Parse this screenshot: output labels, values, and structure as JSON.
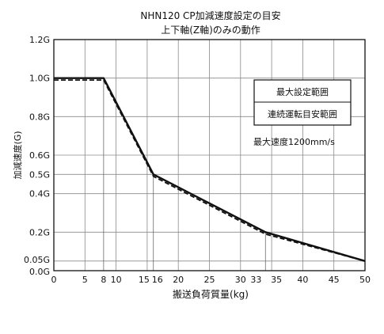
{
  "chart_data": {
    "type": "line",
    "title": "NHN120 CP加減速度設定の目安",
    "subtitle": "上下軸(Z軸)のみの動作",
    "xlabel": "搬送負荷質量(kg)",
    "ylabel": "加減速度(G)",
    "xlim": [
      0,
      50
    ],
    "ylim": [
      0,
      1.2
    ],
    "x_ticks": [
      0,
      5,
      8,
      10,
      15,
      16,
      20,
      25,
      30,
      33,
      35,
      40,
      45,
      50
    ],
    "x_tick_labels": [
      "0",
      "5",
      "8",
      "10",
      "15",
      "16",
      "20",
      "25",
      "30",
      "33",
      "35",
      "40",
      "45",
      "50"
    ],
    "y_ticks": [
      0,
      0.05,
      0.2,
      0.4,
      0.5,
      0.6,
      0.8,
      1.0,
      1.2
    ],
    "y_tick_labels": [
      "0.0G",
      "0.05G",
      "0.2G",
      "0.4G",
      "0.5G",
      "0.6G",
      "0.8G",
      "1.0G",
      "1.2G"
    ],
    "grid": true,
    "series": [
      {
        "name": "最大設定範囲",
        "style": "solid",
        "color": "#111111",
        "x": [
          0,
          8,
          16,
          34,
          50
        ],
        "y": [
          1.0,
          1.0,
          0.5,
          0.2,
          0.05
        ]
      },
      {
        "name": "連続運転目安範囲",
        "style": "dashed",
        "color": "#111111",
        "x": [
          0,
          8,
          16,
          34,
          50
        ],
        "y": [
          0.99,
          0.99,
          0.49,
          0.19,
          0.05
        ]
      }
    ],
    "legend": {
      "position": "right",
      "items": [
        "最大設定範囲",
        "連続運転目安範囲"
      ]
    },
    "annotation": "最大速度1200mm/s"
  }
}
